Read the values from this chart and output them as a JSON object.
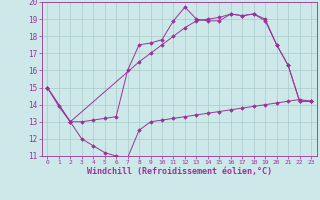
{
  "background_color": "#cce8e8",
  "grid_color": "#aacccc",
  "line_color": "#993399",
  "xlim": [
    -0.5,
    23.5
  ],
  "ylim": [
    11,
    20
  ],
  "xlabel": "Windchill (Refroidissement éolien,°C)",
  "xticks": [
    0,
    1,
    2,
    3,
    4,
    5,
    6,
    7,
    8,
    9,
    10,
    11,
    12,
    13,
    14,
    15,
    16,
    17,
    18,
    19,
    20,
    21,
    22,
    23
  ],
  "yticks": [
    11,
    12,
    13,
    14,
    15,
    16,
    17,
    18,
    19,
    20
  ],
  "line1_x": [
    0,
    1,
    2,
    3,
    4,
    5,
    6,
    7,
    8,
    9,
    10,
    11,
    12,
    13,
    14,
    15,
    16,
    17,
    18,
    19,
    20,
    21,
    22,
    23
  ],
  "line1_y": [
    15.0,
    13.9,
    13.0,
    12.0,
    11.6,
    11.2,
    11.0,
    10.9,
    12.5,
    13.0,
    13.1,
    13.2,
    13.3,
    13.4,
    13.5,
    13.6,
    13.7,
    13.8,
    13.9,
    14.0,
    14.1,
    14.2,
    14.3,
    14.2
  ],
  "line2_x": [
    0,
    2,
    3,
    4,
    5,
    6,
    7,
    8,
    9,
    10,
    11,
    12,
    13,
    14,
    15,
    16,
    17,
    18,
    19,
    20,
    21,
    22,
    23
  ],
  "line2_y": [
    15.0,
    13.0,
    13.0,
    13.1,
    13.2,
    13.3,
    16.0,
    17.5,
    17.6,
    17.8,
    18.9,
    19.7,
    19.0,
    18.9,
    18.9,
    19.3,
    19.2,
    19.3,
    18.9,
    17.5,
    16.3,
    14.2,
    14.2
  ],
  "line3_x": [
    0,
    2,
    8,
    9,
    10,
    11,
    12,
    13,
    14,
    15,
    16,
    17,
    18,
    19,
    20,
    21,
    22,
    23
  ],
  "line3_y": [
    15.0,
    13.0,
    16.5,
    17.0,
    17.5,
    18.0,
    18.5,
    18.9,
    19.0,
    19.1,
    19.3,
    19.2,
    19.3,
    19.0,
    17.5,
    16.3,
    14.2,
    14.2
  ]
}
